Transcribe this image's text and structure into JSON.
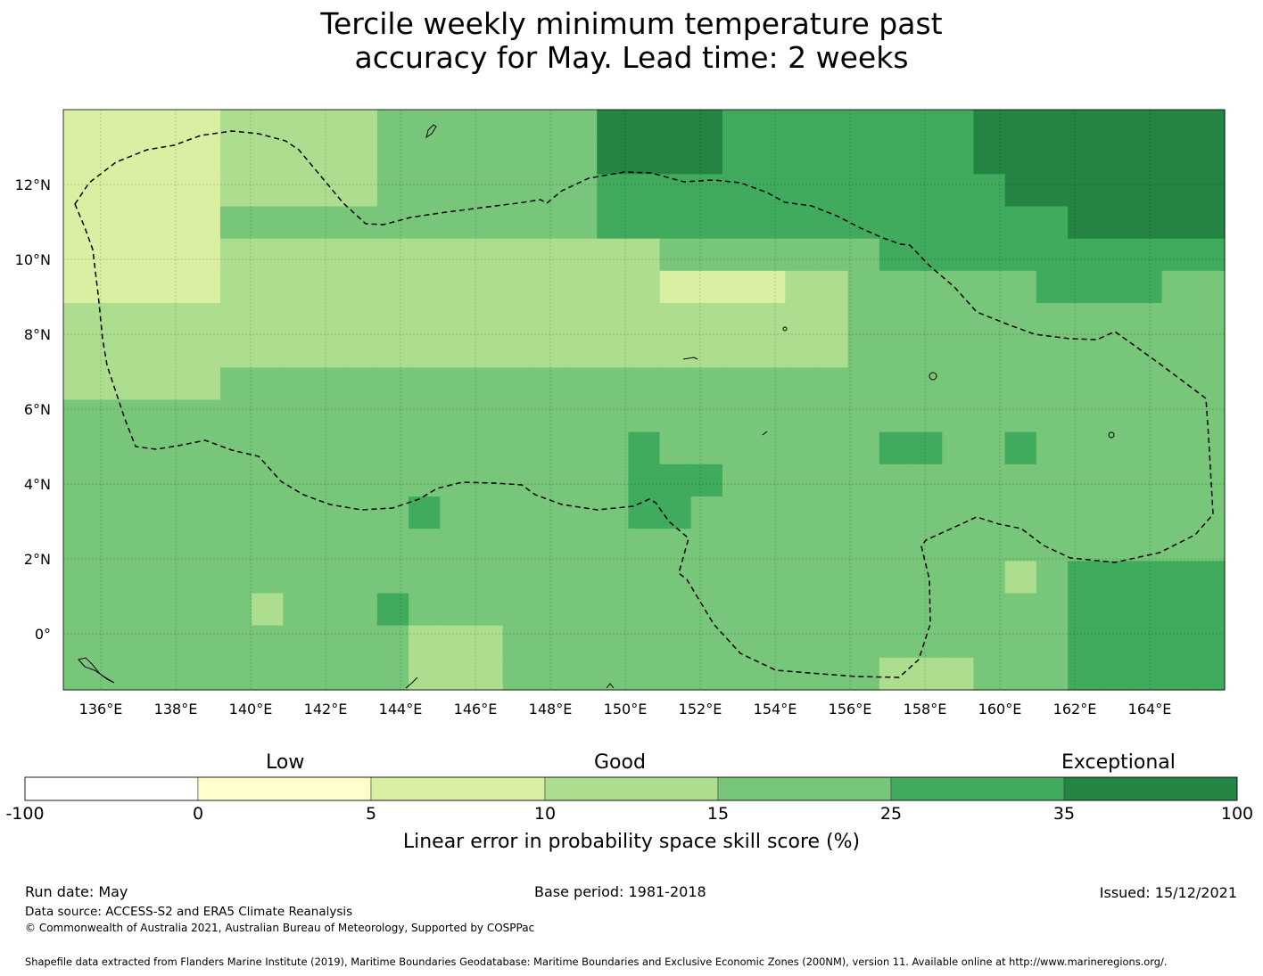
{
  "title_line1": "Tercile weekly minimum temperature past",
  "title_line2": "accuracy for May. Lead time: 2 weeks",
  "map": {
    "lon_ticks": [
      "136°E",
      "138°E",
      "140°E",
      "142°E",
      "144°E",
      "146°E",
      "148°E",
      "150°E",
      "152°E",
      "154°E",
      "156°E",
      "158°E",
      "160°E",
      "162°E",
      "164°E"
    ],
    "lat_ticks": [
      "12°N",
      "10°N",
      "8°N",
      "6°N",
      "4°N",
      "2°N",
      "0°"
    ],
    "colors": [
      "#ffffff",
      "#ffffcc",
      "#d9f0a3",
      "#addd8e",
      "#78c679",
      "#41ab5d",
      "#238443"
    ]
  },
  "colorbar": {
    "categories": [
      "Low",
      "Good",
      "Exceptional"
    ],
    "ticks": [
      "-100",
      "0",
      "5",
      "10",
      "15",
      "25",
      "35",
      "100"
    ],
    "label": "Linear error in probability space skill score (%)"
  },
  "footer": {
    "run_date": "Run date: May",
    "base_period": "Base period: 1981-2018",
    "issued": "Issued: 15/12/2021",
    "data_source": "Data source: ACCESS-S2 and ERA5 Climate Reanalysis",
    "copyright": "© Commonwealth of Australia 2021, Australian Bureau of Meteorology, Supported by COSPPac",
    "shapefile": "Shapefile data extracted from Flanders Marine Institute (2019), Maritime Boundaries Geodatabase: Maritime Boundaries and Exclusive Economic Zones (200NM), version 11. Available online at http://www.marineregions.org/."
  }
}
